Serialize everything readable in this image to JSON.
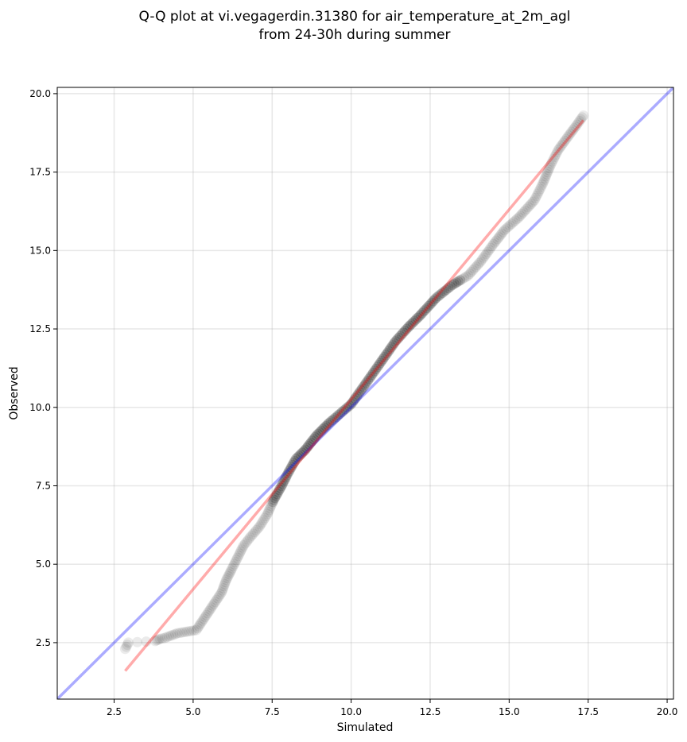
{
  "chart_data": {
    "type": "scatter",
    "title_lines": [
      "Q-Q plot at vi.vegagerdin.31380 for air_temperature_at_2m_agl",
      "from 24-30h during summer"
    ],
    "xlabel": "Simulated",
    "ylabel": "Observed",
    "xlim": [
      0.7,
      20.2
    ],
    "ylim": [
      0.7,
      20.2
    ],
    "xticks": [
      "2.5",
      "5.0",
      "7.5",
      "10.0",
      "12.5",
      "15.0",
      "17.5",
      "20.0"
    ],
    "yticks": [
      "2.5",
      "5.0",
      "7.5",
      "10.0",
      "12.5",
      "15.0",
      "17.5",
      "20.0"
    ],
    "grid": true,
    "colors": {
      "points": "#000000",
      "identity_line": "#0000ff",
      "fit_line": "#ff0000"
    },
    "identity_line": {
      "x": [
        0.7,
        20.2
      ],
      "y": [
        0.7,
        20.2
      ]
    },
    "fit_line": {
      "x": [
        2.85,
        17.35
      ],
      "y": [
        1.6,
        19.15
      ]
    },
    "quantile_curve": [
      [
        2.85,
        2.3
      ],
      [
        2.95,
        2.5
      ],
      [
        3.8,
        2.55
      ],
      [
        3.95,
        2.62
      ],
      [
        4.1,
        2.65
      ],
      [
        4.5,
        2.8
      ],
      [
        5.1,
        2.9
      ],
      [
        5.3,
        3.2
      ],
      [
        5.5,
        3.5
      ],
      [
        5.7,
        3.8
      ],
      [
        5.9,
        4.1
      ],
      [
        6.05,
        4.5
      ],
      [
        6.2,
        4.8
      ],
      [
        6.4,
        5.2
      ],
      [
        6.6,
        5.6
      ],
      [
        6.8,
        5.85
      ],
      [
        7.1,
        6.2
      ],
      [
        7.35,
        6.6
      ],
      [
        7.55,
        7.05
      ],
      [
        7.8,
        7.5
      ],
      [
        8.0,
        7.9
      ],
      [
        8.25,
        8.35
      ],
      [
        8.55,
        8.65
      ],
      [
        8.9,
        9.1
      ],
      [
        9.3,
        9.5
      ],
      [
        9.65,
        9.8
      ],
      [
        10.0,
        10.1
      ],
      [
        10.35,
        10.6
      ],
      [
        10.7,
        11.1
      ],
      [
        11.05,
        11.6
      ],
      [
        11.4,
        12.1
      ],
      [
        11.8,
        12.55
      ],
      [
        12.2,
        12.95
      ],
      [
        12.7,
        13.5
      ],
      [
        13.2,
        13.9
      ],
      [
        13.7,
        14.2
      ],
      [
        14.1,
        14.65
      ],
      [
        14.5,
        15.2
      ],
      [
        14.85,
        15.65
      ],
      [
        15.3,
        16.05
      ],
      [
        15.8,
        16.6
      ],
      [
        16.05,
        17.1
      ],
      [
        16.3,
        17.7
      ],
      [
        16.55,
        18.2
      ],
      [
        16.8,
        18.55
      ],
      [
        17.1,
        18.95
      ],
      [
        17.35,
        19.3
      ]
    ]
  }
}
